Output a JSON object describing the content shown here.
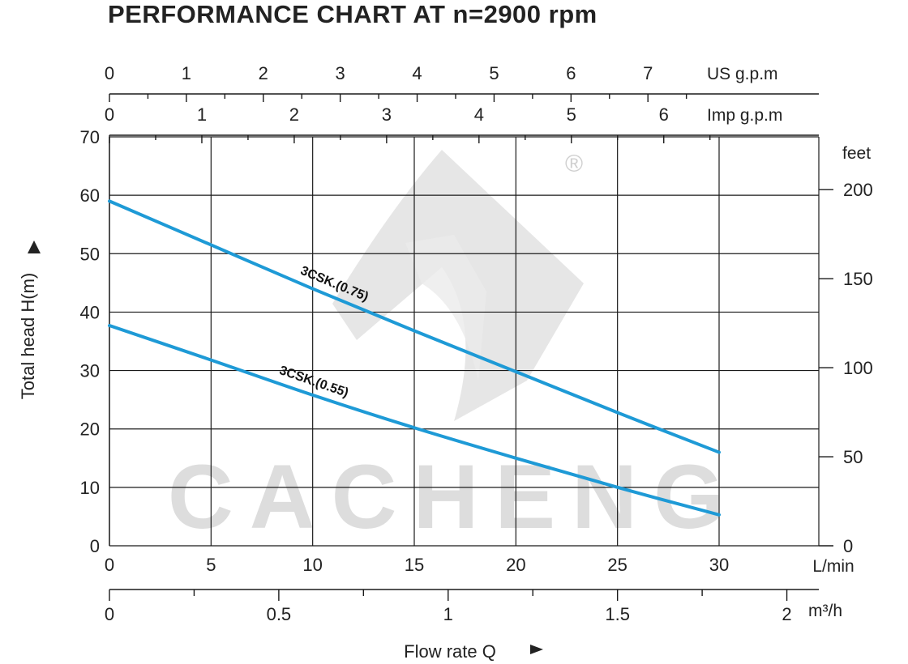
{
  "chart_data": {
    "type": "line",
    "title": "PERFORMANCE CHART AT n=2900 rpm",
    "xlabel": "Flow rate  Q",
    "ylabel": "Total  head H(m)",
    "x_unit": "L/min",
    "xlim": [
      0,
      35
    ],
    "ylim": [
      0,
      70
    ],
    "x_ticks": [
      0,
      5,
      10,
      15,
      20,
      25,
      30
    ],
    "y_ticks": [
      0,
      10,
      20,
      30,
      40,
      50,
      60,
      70
    ],
    "grid": true,
    "secondary_axes": {
      "us_gpm": {
        "unit": "US g.p.m",
        "ticks": [
          0,
          1,
          2,
          3,
          4,
          5,
          6,
          7
        ]
      },
      "imp_gpm": {
        "unit": "Imp g.p.m",
        "ticks": [
          0,
          1,
          2,
          3,
          4,
          5,
          6
        ]
      },
      "feet": {
        "unit": "feet",
        "ticks": [
          0,
          50,
          100,
          150,
          200
        ]
      },
      "m3h": {
        "unit": "m³/h",
        "ticks": [
          "0",
          "0.5",
          "1",
          "1.5",
          "2"
        ]
      }
    },
    "series": [
      {
        "name": "3CSK.(0.75)",
        "x": [
          0,
          5,
          10,
          15,
          20,
          25,
          30
        ],
        "y": [
          59,
          51.5,
          44,
          36.8,
          29.8,
          22.8,
          16
        ]
      },
      {
        "name": "3CSK.(0.55)",
        "x": [
          0,
          5,
          10,
          15,
          20,
          25,
          30
        ],
        "y": [
          37.7,
          31.8,
          25.8,
          20.2,
          15,
          10,
          5.3
        ]
      }
    ],
    "watermark": "CACHENG",
    "registered_mark": "®",
    "colors": {
      "curve": "#1e9ad6",
      "grid": "#1a1a1a",
      "watermark": "#dcdcdc"
    }
  }
}
